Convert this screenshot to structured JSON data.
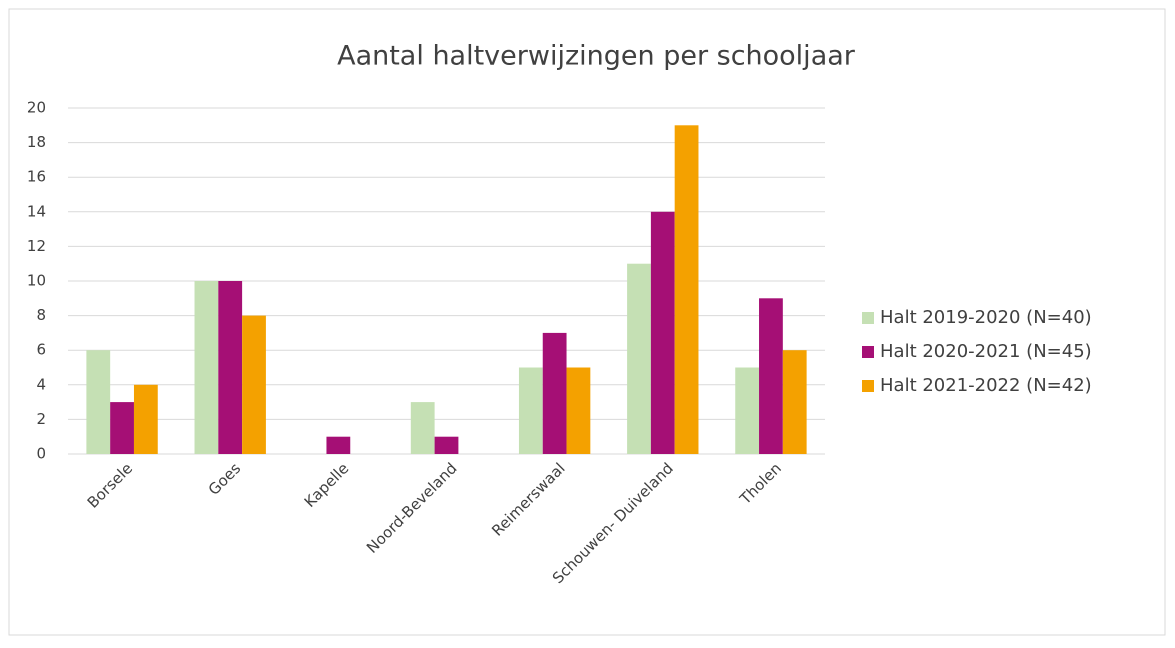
{
  "chart_data": {
    "type": "bar",
    "title": "Aantal haltverwijzingen per schooljaar",
    "categories": [
      "Borsele",
      "Goes",
      "Kapelle",
      "Noord-Beveland",
      "Reimerswaal",
      "Schouwen- Duiveland",
      "Tholen"
    ],
    "series": [
      {
        "name": "Halt 2019-2020 (N=40)",
        "color": "#c5e0b4",
        "values": [
          6,
          10,
          0,
          3,
          5,
          11,
          5
        ]
      },
      {
        "name": "Halt 2020-2021 (N=45)",
        "color": "#a50f75",
        "values": [
          3,
          10,
          1,
          1,
          7,
          14,
          9
        ]
      },
      {
        "name": "Halt 2021-2022 (N=42)",
        "color": "#f4a100",
        "values": [
          4,
          8,
          0,
          0,
          5,
          19,
          6
        ]
      }
    ],
    "ylim": [
      0,
      20
    ],
    "yticks": [
      0,
      2,
      4,
      6,
      8,
      10,
      12,
      14,
      16,
      18,
      20
    ],
    "grid": true,
    "legend": "right"
  }
}
